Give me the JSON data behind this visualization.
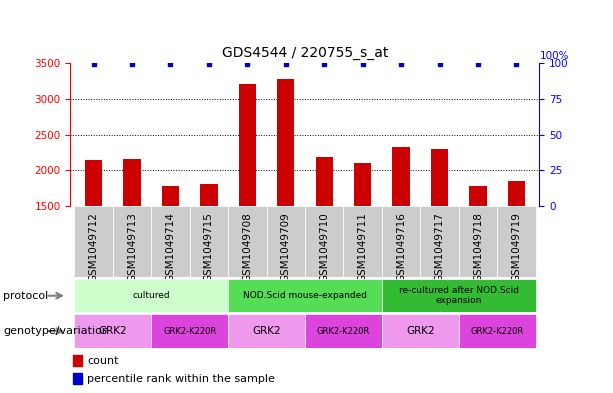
{
  "title": "GDS4544 / 220755_s_at",
  "samples": [
    "GSM1049712",
    "GSM1049713",
    "GSM1049714",
    "GSM1049715",
    "GSM1049708",
    "GSM1049709",
    "GSM1049710",
    "GSM1049711",
    "GSM1049716",
    "GSM1049717",
    "GSM1049718",
    "GSM1049719"
  ],
  "counts": [
    2150,
    2160,
    1780,
    1810,
    3200,
    3280,
    2190,
    2105,
    2330,
    2305,
    1790,
    1850
  ],
  "percentile": [
    99,
    99,
    99,
    99,
    99,
    99,
    99,
    99,
    99,
    99,
    99,
    99
  ],
  "ylim_left": [
    1500,
    3500
  ],
  "ylim_right": [
    0,
    100
  ],
  "yticks_left": [
    1500,
    2000,
    2500,
    3000,
    3500
  ],
  "yticks_right": [
    0,
    25,
    50,
    75,
    100
  ],
  "bar_color": "#cc0000",
  "dot_color": "#0000cc",
  "dotted_grid_values": [
    2000,
    2500,
    3000
  ],
  "protocol_row": {
    "label": "protocol",
    "groups": [
      {
        "text": "cultured",
        "start": 0,
        "end": 4,
        "color": "#ccffcc"
      },
      {
        "text": "NOD.Scid mouse-expanded",
        "start": 4,
        "end": 8,
        "color": "#55dd55"
      },
      {
        "text": "re-cultured after NOD.Scid\nexpansion",
        "start": 8,
        "end": 12,
        "color": "#33bb33"
      }
    ]
  },
  "genotype_row": {
    "label": "genotype/variation",
    "groups": [
      {
        "text": "GRK2",
        "start": 0,
        "end": 2,
        "color": "#ee99ee"
      },
      {
        "text": "GRK2-K220R",
        "start": 2,
        "end": 4,
        "color": "#dd44dd"
      },
      {
        "text": "GRK2",
        "start": 4,
        "end": 6,
        "color": "#ee99ee"
      },
      {
        "text": "GRK2-K220R",
        "start": 6,
        "end": 8,
        "color": "#dd44dd"
      },
      {
        "text": "GRK2",
        "start": 8,
        "end": 10,
        "color": "#ee99ee"
      },
      {
        "text": "GRK2-K220R",
        "start": 10,
        "end": 12,
        "color": "#dd44dd"
      }
    ]
  },
  "xtick_box_color": "#cccccc",
  "title_fontsize": 10,
  "tick_fontsize": 7.5,
  "annotation_fontsize": 8,
  "bar_width": 0.45
}
